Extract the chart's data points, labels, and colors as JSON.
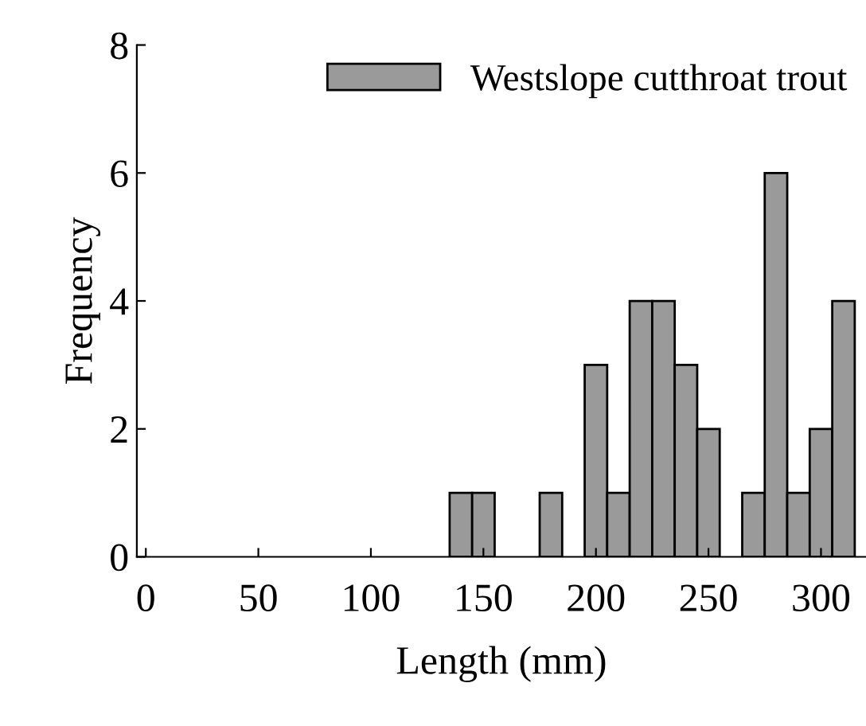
{
  "chart_data": {
    "type": "histogram",
    "xlabel": "Length (mm)",
    "ylabel": "Frequency",
    "bins": [
      135,
      145,
      155,
      165,
      175,
      185,
      195,
      205,
      215,
      225,
      235,
      245,
      255,
      265,
      275,
      285,
      295,
      305,
      315
    ],
    "series": [
      {
        "name": "Westslope cutthroat trout",
        "color": "#9a9a9a",
        "values": [
          1,
          1,
          0,
          0,
          1,
          0,
          3,
          1,
          4,
          4,
          3,
          2,
          0,
          1,
          6,
          1,
          2,
          4
        ]
      }
    ],
    "xlim": [
      -4,
      320
    ],
    "xticks": [
      0,
      50,
      100,
      150,
      200,
      250,
      300
    ],
    "ylim": [
      0,
      8
    ],
    "yticks": [
      0,
      2,
      4,
      6,
      8
    ],
    "grid": false,
    "legend": "top right"
  }
}
